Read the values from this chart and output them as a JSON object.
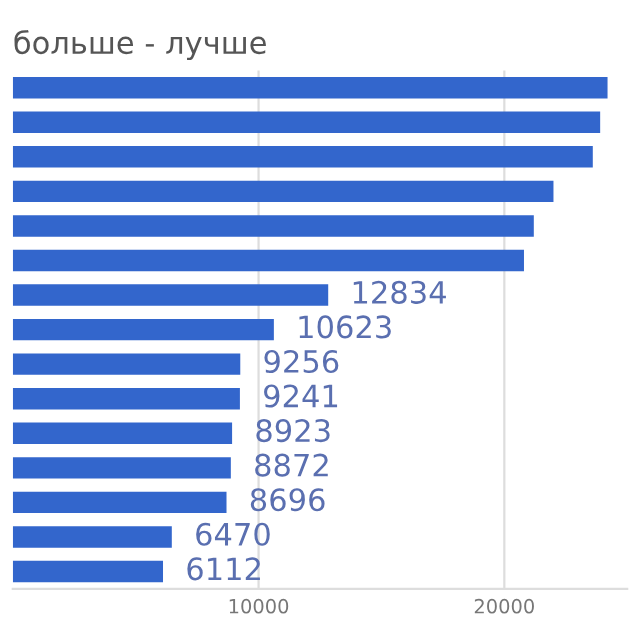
{
  "chart_data": {
    "type": "bar",
    "orientation": "horizontal",
    "title": "больше - лучше",
    "categories": [
      null,
      null,
      null,
      null,
      null,
      null,
      null,
      null,
      null,
      null,
      null,
      null,
      null,
      null,
      null
    ],
    "values": [
      24200,
      23900,
      23600,
      22000,
      21200,
      20800,
      12834,
      10623,
      9256,
      9241,
      8923,
      8872,
      8696,
      6470,
      6112
    ],
    "value_labels": [
      null,
      null,
      null,
      null,
      null,
      null,
      "12834",
      "10623",
      "9256",
      "9241",
      "8923",
      "8872",
      "8696",
      "6470",
      "6112"
    ],
    "color": "#3366cc",
    "xlim": [
      0,
      25000
    ],
    "xticks": [
      10000,
      20000
    ],
    "grid": "x"
  }
}
